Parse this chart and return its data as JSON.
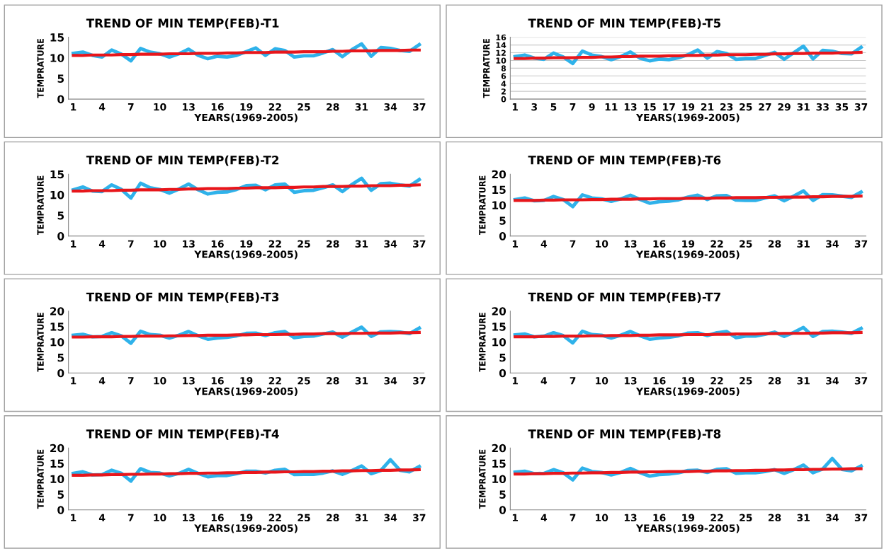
{
  "chart_data": [
    {
      "type": "line",
      "title": "TREND OF MIN TEMP(FEB)-T1",
      "xlabel": "YEARS(1969-2005)",
      "ylabel": "TEMPRATURE",
      "x": [
        1,
        2,
        3,
        4,
        5,
        6,
        7,
        8,
        9,
        10,
        11,
        12,
        13,
        14,
        15,
        16,
        17,
        18,
        19,
        20,
        21,
        22,
        23,
        24,
        25,
        26,
        27,
        28,
        29,
        30,
        31,
        32,
        33,
        34,
        35,
        36,
        37
      ],
      "xlim": [
        0.5,
        37.5
      ],
      "xticks": [
        1,
        4,
        7,
        10,
        13,
        16,
        19,
        22,
        25,
        28,
        31,
        34,
        37
      ],
      "ylim": [
        0,
        15
      ],
      "yticks": [
        0,
        5,
        10,
        15
      ],
      "grid": false,
      "legend": false,
      "series": [
        {
          "color": "#2fb2ea",
          "values": [
            11.1,
            11.4,
            10.6,
            10.2,
            11.9,
            10.9,
            9.3,
            12.3,
            11.4,
            11.0,
            10.2,
            11.0,
            12.1,
            10.6,
            9.8,
            10.4,
            10.2,
            10.6,
            11.5,
            12.4,
            10.6,
            12.2,
            11.8,
            10.2,
            10.5,
            10.5,
            11.2,
            12.0,
            10.3,
            12.0,
            13.4,
            10.4,
            12.5,
            12.3,
            11.8,
            11.6,
            13.2
          ]
        },
        {
          "type": "line",
          "color": "#e8161b",
          "values": [
            10.6,
            10.6,
            10.7,
            10.7,
            10.7,
            10.8,
            10.8,
            10.9,
            10.9,
            10.9,
            11.0,
            11.0,
            11.0,
            11.1,
            11.1,
            11.1,
            11.2,
            11.2,
            11.3,
            11.3,
            11.3,
            11.4,
            11.4,
            11.4,
            11.5,
            11.5,
            11.5,
            11.6,
            11.6,
            11.7,
            11.7,
            11.7,
            11.8,
            11.8,
            11.8,
            11.9,
            11.9
          ]
        }
      ]
    },
    {
      "type": "line",
      "title": "TREND OF MIN TEMP(FEB)-T5",
      "xlabel": "YEARS(1969-2005)",
      "ylabel": "TEMPRATURE",
      "x": [
        1,
        2,
        3,
        4,
        5,
        6,
        7,
        8,
        9,
        10,
        11,
        12,
        13,
        14,
        15,
        16,
        17,
        18,
        19,
        20,
        21,
        22,
        23,
        24,
        25,
        26,
        27,
        28,
        29,
        30,
        31,
        32,
        33,
        34,
        35,
        36,
        37
      ],
      "xlim": [
        0.5,
        37.5
      ],
      "xticks": [
        1,
        3,
        5,
        7,
        9,
        11,
        13,
        15,
        17,
        19,
        21,
        23,
        25,
        27,
        29,
        31,
        33,
        35,
        37
      ],
      "ylim": [
        0,
        16
      ],
      "yticks": [
        0,
        2,
        4,
        6,
        8,
        10,
        12,
        14,
        16
      ],
      "grid": "y",
      "legend": false,
      "series": [
        {
          "color": "#2fb2ea",
          "values": [
            11.0,
            11.4,
            10.6,
            10.3,
            11.9,
            10.9,
            9.2,
            12.4,
            11.4,
            11.0,
            10.2,
            11.0,
            12.2,
            10.6,
            9.9,
            10.4,
            10.2,
            10.7,
            11.5,
            12.7,
            10.6,
            12.3,
            11.8,
            10.3,
            10.5,
            10.5,
            11.3,
            12.1,
            10.3,
            12.0,
            13.7,
            10.4,
            12.6,
            12.4,
            11.8,
            11.7,
            13.4
          ]
        },
        {
          "type": "line",
          "color": "#e8161b",
          "values": [
            10.5,
            10.5,
            10.6,
            10.6,
            10.7,
            10.7,
            10.7,
            10.8,
            10.8,
            10.9,
            10.9,
            11.0,
            11.0,
            11.1,
            11.1,
            11.1,
            11.2,
            11.2,
            11.3,
            11.3,
            11.4,
            11.4,
            11.5,
            11.5,
            11.5,
            11.6,
            11.6,
            11.7,
            11.7,
            11.8,
            11.8,
            11.9,
            11.9,
            11.9,
            12.0,
            12.0,
            12.1
          ]
        }
      ]
    },
    {
      "type": "line",
      "title": "TREND OF MIN TEMP(FEB)-T2",
      "xlabel": "YEARS(1969-2005)",
      "ylabel": "TEMPRATURE",
      "x": [
        1,
        2,
        3,
        4,
        5,
        6,
        7,
        8,
        9,
        10,
        11,
        12,
        13,
        14,
        15,
        16,
        17,
        18,
        19,
        20,
        21,
        22,
        23,
        24,
        25,
        26,
        27,
        28,
        29,
        30,
        31,
        32,
        33,
        34,
        35,
        36,
        37
      ],
      "xlim": [
        0.5,
        37.5
      ],
      "xticks": [
        1,
        4,
        7,
        10,
        13,
        16,
        19,
        22,
        25,
        28,
        31,
        34,
        37
      ],
      "ylim": [
        0,
        15
      ],
      "yticks": [
        0,
        5,
        10,
        15
      ],
      "grid": false,
      "legend": false,
      "series": [
        {
          "color": "#2fb2ea",
          "values": [
            11.2,
            11.9,
            10.9,
            10.8,
            12.4,
            11.3,
            9.2,
            12.8,
            11.7,
            11.3,
            10.4,
            11.4,
            12.6,
            11.2,
            10.2,
            10.6,
            10.7,
            11.3,
            12.2,
            12.3,
            11.2,
            12.4,
            12.6,
            10.6,
            11.0,
            11.1,
            11.7,
            12.4,
            10.8,
            12.5,
            14.0,
            11.1,
            12.7,
            12.8,
            12.4,
            12.1,
            13.7
          ]
        },
        {
          "type": "line",
          "color": "#e8161b",
          "values": [
            10.9,
            10.9,
            11.0,
            11.0,
            11.0,
            11.1,
            11.1,
            11.2,
            11.2,
            11.2,
            11.3,
            11.3,
            11.4,
            11.4,
            11.5,
            11.5,
            11.5,
            11.6,
            11.6,
            11.7,
            11.7,
            11.7,
            11.8,
            11.8,
            11.9,
            11.9,
            12.0,
            12.0,
            12.0,
            12.1,
            12.1,
            12.2,
            12.2,
            12.2,
            12.3,
            12.3,
            12.4
          ]
        }
      ]
    },
    {
      "type": "line",
      "title": "TREND OF MIN TEMP(FEB)-T6",
      "xlabel": "YEARS(1969-2005)",
      "ylabel": "TEMPRATURE",
      "x": [
        1,
        2,
        3,
        4,
        5,
        6,
        7,
        8,
        9,
        10,
        11,
        12,
        13,
        14,
        15,
        16,
        17,
        18,
        19,
        20,
        21,
        22,
        23,
        24,
        25,
        26,
        27,
        28,
        29,
        30,
        31,
        32,
        33,
        34,
        35,
        36,
        37
      ],
      "xlim": [
        0.5,
        37.5
      ],
      "xticks": [
        1,
        4,
        7,
        10,
        13,
        16,
        19,
        22,
        25,
        28,
        31,
        34,
        37
      ],
      "ylim": [
        0,
        20
      ],
      "yticks": [
        0,
        5,
        10,
        15,
        20
      ],
      "grid": false,
      "legend": false,
      "series": [
        {
          "color": "#2fb2ea",
          "values": [
            11.8,
            12.3,
            11.4,
            11.5,
            12.8,
            11.8,
            9.5,
            13.3,
            12.3,
            12.0,
            11.2,
            12.0,
            13.2,
            11.8,
            10.6,
            11.1,
            11.3,
            11.7,
            12.6,
            13.2,
            11.8,
            13.0,
            13.1,
            11.6,
            11.5,
            11.5,
            12.3,
            13.0,
            11.4,
            12.9,
            14.6,
            11.5,
            13.4,
            13.3,
            12.9,
            12.5,
            14.2
          ]
        },
        {
          "type": "line",
          "color": "#e8161b",
          "values": [
            11.5,
            11.5,
            11.5,
            11.6,
            11.6,
            11.7,
            11.7,
            11.7,
            11.8,
            11.8,
            11.9,
            11.9,
            11.9,
            12.0,
            12.0,
            12.1,
            12.1,
            12.1,
            12.2,
            12.2,
            12.2,
            12.3,
            12.3,
            12.4,
            12.4,
            12.4,
            12.5,
            12.5,
            12.6,
            12.6,
            12.6,
            12.7,
            12.7,
            12.8,
            12.8,
            12.8,
            12.9
          ]
        }
      ]
    },
    {
      "type": "line",
      "title": "TREND OF MIN TEMP(FEB)-T3",
      "xlabel": "YEARS(1969-2005)",
      "ylabel": "TEMPRATURE",
      "x": [
        1,
        2,
        3,
        4,
        5,
        6,
        7,
        8,
        9,
        10,
        11,
        12,
        13,
        14,
        15,
        16,
        17,
        18,
        19,
        20,
        21,
        22,
        23,
        24,
        25,
        26,
        27,
        28,
        29,
        30,
        31,
        32,
        33,
        34,
        35,
        36,
        37
      ],
      "xlim": [
        0.5,
        37.5
      ],
      "xticks": [
        1,
        4,
        7,
        10,
        13,
        16,
        19,
        22,
        25,
        28,
        31,
        34,
        37
      ],
      "ylim": [
        0,
        20
      ],
      "yticks": [
        0,
        5,
        10,
        15,
        20
      ],
      "grid": false,
      "legend": false,
      "series": [
        {
          "color": "#2fb2ea",
          "values": [
            12.2,
            12.5,
            11.7,
            11.8,
            13.0,
            12.0,
            9.6,
            13.5,
            12.4,
            12.2,
            11.3,
            12.2,
            13.4,
            12.0,
            10.9,
            11.3,
            11.5,
            12.0,
            12.8,
            12.9,
            12.1,
            13.0,
            13.4,
            11.4,
            11.8,
            11.9,
            12.6,
            13.2,
            11.6,
            13.2,
            14.8,
            11.8,
            13.3,
            13.4,
            13.2,
            12.7,
            14.5
          ]
        },
        {
          "type": "line",
          "color": "#e8161b",
          "values": [
            11.6,
            11.6,
            11.7,
            11.7,
            11.7,
            11.8,
            11.8,
            11.9,
            11.9,
            11.9,
            12.0,
            12.0,
            12.1,
            12.1,
            12.2,
            12.2,
            12.2,
            12.3,
            12.3,
            12.4,
            12.4,
            12.4,
            12.5,
            12.5,
            12.6,
            12.6,
            12.7,
            12.7,
            12.7,
            12.8,
            12.8,
            12.9,
            12.9,
            12.9,
            13.0,
            13.0,
            13.1
          ]
        }
      ]
    },
    {
      "type": "line",
      "title": "TREND OF MIN TEMP(FEB)-T7",
      "xlabel": "YEARS(1969-2005)",
      "ylabel": "TEMPRATURE",
      "x": [
        1,
        2,
        3,
        4,
        5,
        6,
        7,
        8,
        9,
        10,
        11,
        12,
        13,
        14,
        15,
        16,
        17,
        18,
        19,
        20,
        21,
        22,
        23,
        24,
        25,
        26,
        27,
        28,
        29,
        30,
        31,
        32,
        33,
        34,
        35,
        36,
        37
      ],
      "xlim": [
        0.5,
        37.5
      ],
      "xticks": [
        1,
        4,
        7,
        10,
        13,
        16,
        19,
        22,
        25,
        28,
        31,
        34,
        37
      ],
      "ylim": [
        0,
        20
      ],
      "yticks": [
        0,
        5,
        10,
        15,
        20
      ],
      "grid": false,
      "legend": false,
      "series": [
        {
          "color": "#2fb2ea",
          "values": [
            12.3,
            12.6,
            11.7,
            11.9,
            13.0,
            12.1,
            9.7,
            13.5,
            12.4,
            12.2,
            11.3,
            12.2,
            13.4,
            12.0,
            10.9,
            11.3,
            11.5,
            12.0,
            12.9,
            13.0,
            12.1,
            13.0,
            13.4,
            11.4,
            11.9,
            11.9,
            12.5,
            13.2,
            11.8,
            13.1,
            14.7,
            11.8,
            13.4,
            13.5,
            13.2,
            12.8,
            14.4
          ]
        },
        {
          "type": "line",
          "color": "#e8161b",
          "values": [
            11.7,
            11.7,
            11.7,
            11.8,
            11.8,
            11.9,
            11.9,
            11.9,
            12.0,
            12.0,
            12.1,
            12.1,
            12.1,
            12.2,
            12.2,
            12.3,
            12.3,
            12.3,
            12.4,
            12.4,
            12.4,
            12.5,
            12.5,
            12.6,
            12.6,
            12.6,
            12.7,
            12.7,
            12.8,
            12.8,
            12.8,
            12.9,
            12.9,
            13.0,
            13.0,
            13.0,
            13.1
          ]
        }
      ]
    },
    {
      "type": "line",
      "title": "TREND OF MIN TEMP(FEB)-T4",
      "xlabel": "YEARS(1969-2005)",
      "ylabel": "TEMPRATURE",
      "x": [
        1,
        2,
        3,
        4,
        5,
        6,
        7,
        8,
        9,
        10,
        11,
        12,
        13,
        14,
        15,
        16,
        17,
        18,
        19,
        20,
        21,
        22,
        23,
        24,
        25,
        26,
        27,
        28,
        29,
        30,
        31,
        32,
        33,
        34,
        35,
        36,
        37
      ],
      "xlim": [
        0.5,
        37.5
      ],
      "xticks": [
        1,
        4,
        7,
        10,
        13,
        16,
        19,
        22,
        25,
        28,
        31,
        34,
        37
      ],
      "ylim": [
        0,
        20
      ],
      "yticks": [
        0,
        5,
        10,
        15,
        20
      ],
      "grid": false,
      "legend": false,
      "series": [
        {
          "color": "#2fb2ea",
          "values": [
            11.8,
            12.3,
            11.3,
            11.4,
            12.8,
            11.8,
            9.3,
            13.3,
            12.1,
            11.9,
            11.0,
            11.8,
            13.1,
            11.8,
            10.7,
            11.1,
            11.1,
            11.7,
            12.5,
            12.5,
            11.9,
            12.8,
            13.1,
            11.4,
            11.5,
            11.5,
            11.9,
            12.6,
            11.5,
            12.7,
            14.2,
            11.7,
            12.7,
            16.2,
            12.8,
            12.3,
            14.0
          ]
        },
        {
          "type": "line",
          "color": "#e8161b",
          "values": [
            11.2,
            11.2,
            11.3,
            11.3,
            11.4,
            11.4,
            11.5,
            11.5,
            11.6,
            11.6,
            11.7,
            11.7,
            11.8,
            11.8,
            11.9,
            11.9,
            12.0,
            12.0,
            12.1,
            12.1,
            12.2,
            12.2,
            12.3,
            12.3,
            12.4,
            12.4,
            12.5,
            12.5,
            12.6,
            12.6,
            12.7,
            12.7,
            12.8,
            12.8,
            12.9,
            12.9,
            13.0
          ]
        }
      ]
    },
    {
      "type": "line",
      "title": "TREND OF MIN TEMP(FEB)-T8",
      "xlabel": "YEARS(1969-2005)",
      "ylabel": "TEMPRATURE",
      "x": [
        1,
        2,
        3,
        4,
        5,
        6,
        7,
        8,
        9,
        10,
        11,
        12,
        13,
        14,
        15,
        16,
        17,
        18,
        19,
        20,
        21,
        22,
        23,
        24,
        25,
        26,
        27,
        28,
        29,
        30,
        31,
        32,
        33,
        34,
        35,
        36,
        37
      ],
      "xlim": [
        0.5,
        37.5
      ],
      "xticks": [
        1,
        4,
        7,
        10,
        13,
        16,
        19,
        22,
        25,
        28,
        31,
        34,
        37
      ],
      "ylim": [
        0,
        20
      ],
      "yticks": [
        0,
        5,
        10,
        15,
        20
      ],
      "grid": false,
      "legend": false,
      "series": [
        {
          "color": "#2fb2ea",
          "values": [
            12.2,
            12.5,
            11.7,
            11.8,
            13.0,
            12.0,
            9.7,
            13.5,
            12.4,
            12.1,
            11.3,
            12.1,
            13.4,
            12.0,
            10.9,
            11.4,
            11.6,
            12.0,
            12.7,
            12.8,
            12.1,
            13.1,
            13.3,
            11.8,
            12.0,
            12.0,
            12.4,
            13.0,
            11.8,
            13.0,
            14.5,
            12.0,
            13.2,
            16.6,
            13.1,
            12.6,
            14.2
          ]
        },
        {
          "type": "line",
          "color": "#e8161b",
          "values": [
            11.6,
            11.6,
            11.7,
            11.7,
            11.8,
            11.8,
            11.9,
            11.9,
            12.0,
            12.0,
            12.1,
            12.1,
            12.2,
            12.2,
            12.3,
            12.3,
            12.4,
            12.4,
            12.4,
            12.5,
            12.5,
            12.6,
            12.6,
            12.7,
            12.7,
            12.8,
            12.8,
            12.9,
            12.9,
            13.0,
            13.0,
            13.1,
            13.1,
            13.2,
            13.2,
            13.3,
            13.3
          ]
        }
      ]
    }
  ]
}
